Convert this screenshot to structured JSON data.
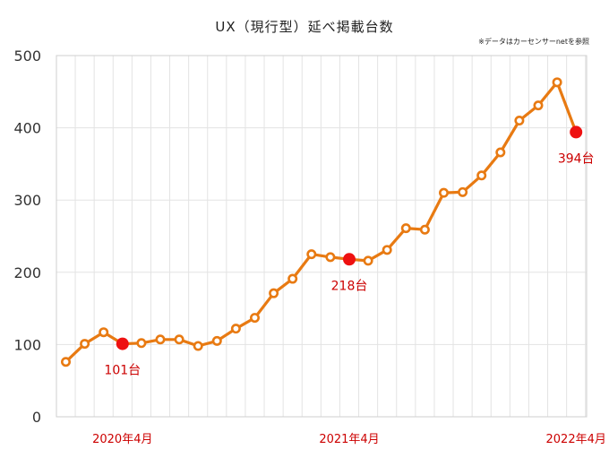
{
  "chart_data": {
    "type": "line",
    "title": "UX（現行型）延べ掲載台数",
    "note": "※データはカーセンサーnetを参照",
    "xlabel": "",
    "ylabel": "",
    "ylim": [
      0,
      500
    ],
    "yticks": [
      0,
      100,
      200,
      300,
      400,
      500
    ],
    "grid": true,
    "x_tick_labels": [
      {
        "index": 3,
        "label": "2020年4月"
      },
      {
        "index": 15,
        "label": "2021年4月"
      },
      {
        "index": 27,
        "label": "2022年4月"
      }
    ],
    "series": [
      {
        "values": [
          76,
          101,
          117,
          101,
          102,
          107,
          107,
          98,
          105,
          122,
          137,
          171,
          191,
          225,
          221,
          218,
          216,
          231,
          261,
          259,
          310,
          311,
          334,
          366,
          410,
          431,
          463,
          394
        ]
      }
    ],
    "highlighted_points": [
      {
        "index": 3,
        "label": "101台"
      },
      {
        "index": 15,
        "label": "218台"
      },
      {
        "index": 27,
        "label": "394台"
      }
    ],
    "colors": {
      "line": "#e87a12",
      "highlight": "#ee1111",
      "label": "#cc0000"
    }
  }
}
